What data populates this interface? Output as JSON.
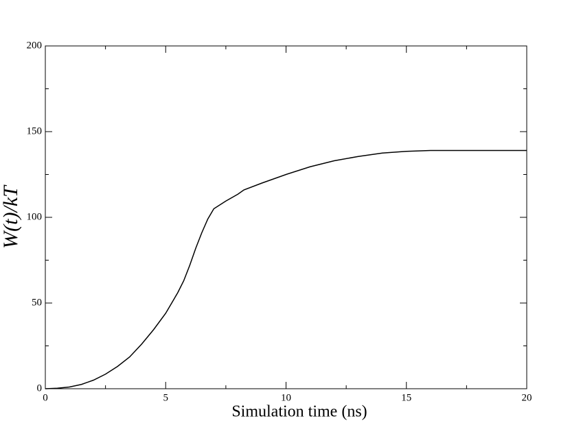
{
  "chart_data": {
    "type": "line",
    "x_label": "Simulation time (ns)",
    "y_label": "W(t)/kT",
    "x": [
      0,
      0.5,
      1,
      1.5,
      2,
      2.5,
      3,
      3.5,
      4,
      4.5,
      5,
      5.5,
      5.75,
      6,
      6.25,
      6.5,
      6.75,
      7,
      7.5,
      8,
      8.25,
      9,
      10,
      11,
      12,
      13,
      14,
      15,
      16,
      17,
      18,
      19,
      20
    ],
    "series": [
      {
        "color": "#000000",
        "values": [
          0,
          0.3,
          1,
          2.5,
          5,
          8.5,
          13,
          18.5,
          26,
          34.5,
          44,
          56,
          63,
          72,
          82,
          91,
          99,
          105,
          109.5,
          113.5,
          116,
          120,
          125,
          129.5,
          133,
          135.5,
          137.5,
          138.5,
          139,
          139,
          139,
          139,
          139
        ]
      }
    ],
    "xlim": [
      0,
      20
    ],
    "xticks": [
      0,
      5,
      10,
      15,
      20
    ],
    "xminorticks": [
      2.5,
      7.5,
      12.5,
      17.5
    ],
    "ylim": [
      0,
      200
    ],
    "yticks": [
      0,
      50,
      100,
      150,
      200
    ],
    "yminorticks": [
      25,
      75,
      125,
      175
    ]
  }
}
